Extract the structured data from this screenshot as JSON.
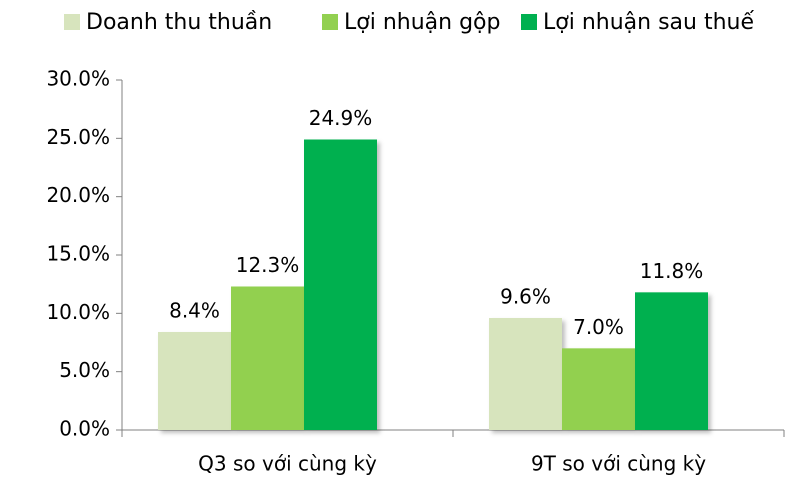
{
  "chart_data": {
    "type": "bar",
    "categories": [
      "Q3 so với cùng kỳ",
      "9T so với cùng kỳ"
    ],
    "series": [
      {
        "name": "Doanh thu thuần",
        "color": "#d7e4bd",
        "values": [
          8.4,
          9.6
        ],
        "value_labels": [
          "8.4%",
          "9.6%"
        ]
      },
      {
        "name": "Lợi nhuận gộp",
        "color": "#92d050",
        "values": [
          12.3,
          7.0
        ],
        "value_labels": [
          "12.3%",
          "7.0%"
        ]
      },
      {
        "name": "Lợi nhuận sau thuế",
        "color": "#00b050",
        "values": [
          24.9,
          11.8
        ],
        "value_labels": [
          "24.9%",
          "11.8%"
        ]
      }
    ],
    "ylim": [
      0,
      30
    ],
    "yticks": [
      {
        "value": 0,
        "label": "0.0%"
      },
      {
        "value": 5,
        "label": "5.0%"
      },
      {
        "value": 10,
        "label": "10.0%"
      },
      {
        "value": 15,
        "label": "15.0%"
      },
      {
        "value": 20,
        "label": "20.0%"
      },
      {
        "value": 25,
        "label": "25.0%"
      },
      {
        "value": 30,
        "label": "30.0%"
      }
    ],
    "legend": "top"
  }
}
